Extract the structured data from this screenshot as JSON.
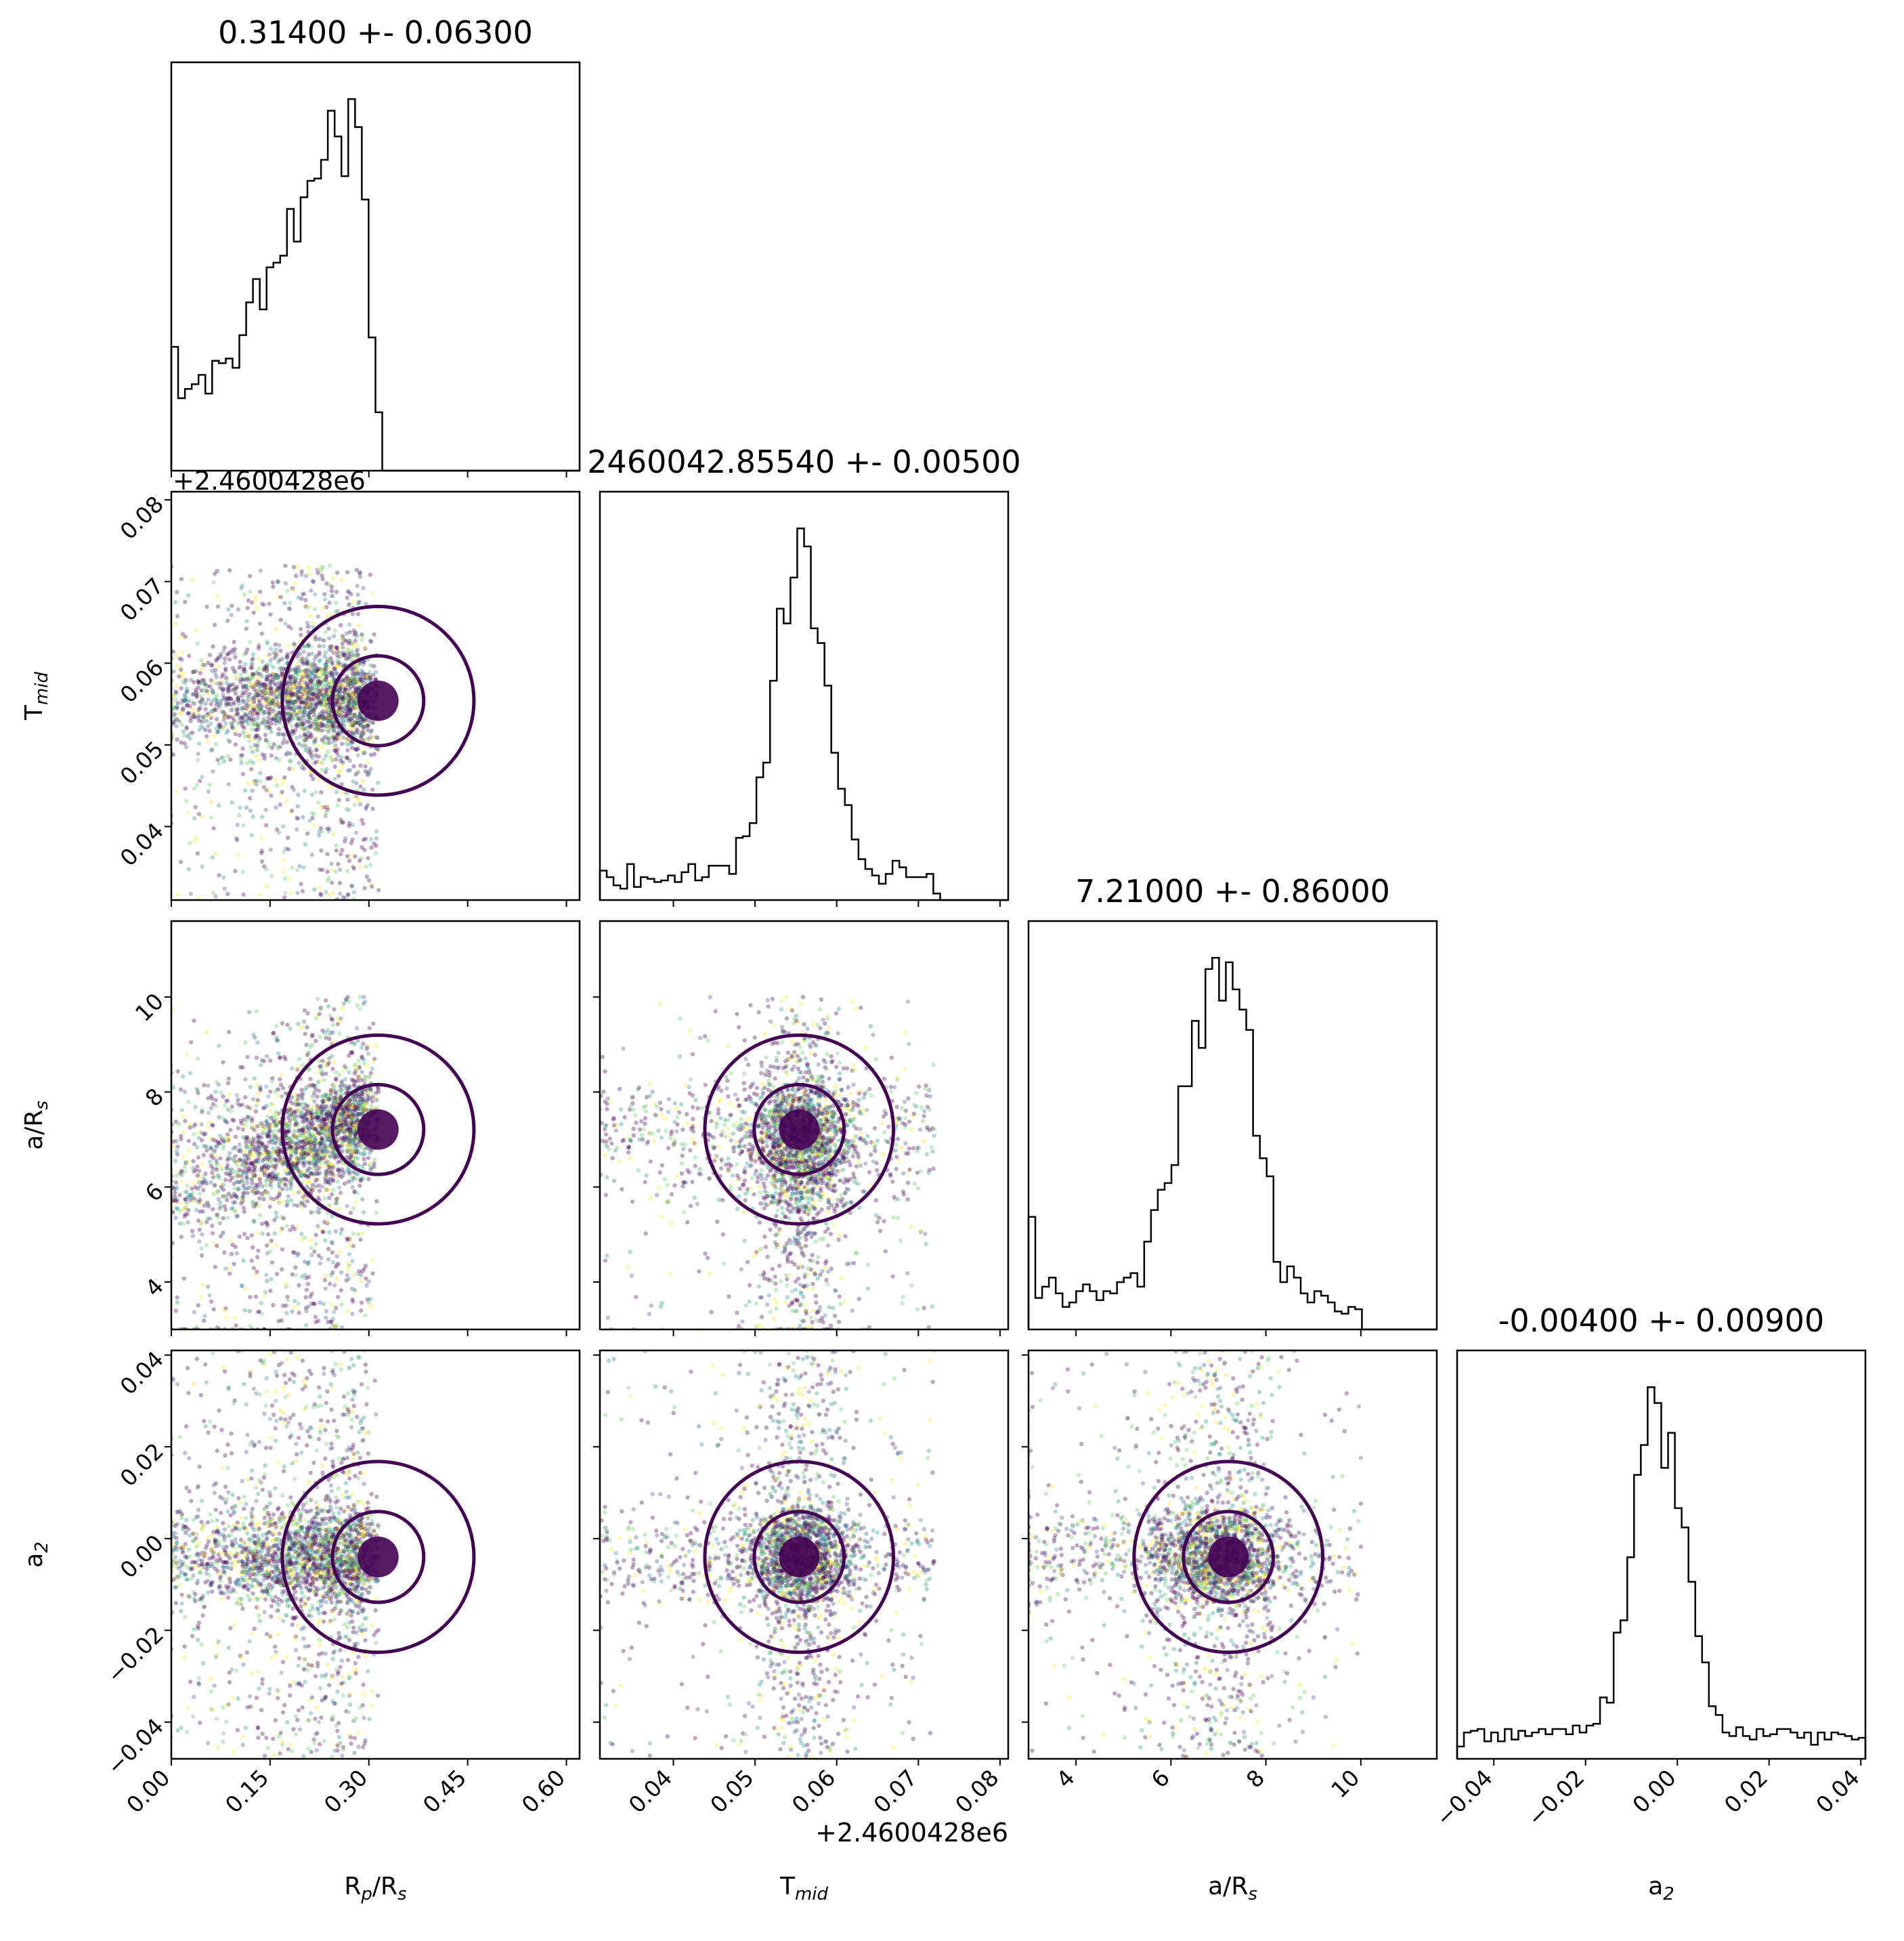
{
  "chart_data": {
    "type": "corner",
    "parameters": [
      {
        "key": "rp",
        "label": "Rp/Rs",
        "display_main": "R",
        "display_sub1": "p",
        "display_mid": "/R",
        "display_sub2": "s",
        "range": [
          0.0,
          0.62
        ],
        "ticks": [
          "0.00",
          "0.15",
          "0.30",
          "0.45",
          "0.60"
        ],
        "tick_values": [
          0.0,
          0.15,
          0.3,
          0.45,
          0.6
        ],
        "title": "0.31400 +- 0.06300",
        "best": 0.314,
        "sigma": 0.063,
        "sample_range": [
          0.0,
          0.315
        ]
      },
      {
        "key": "tmid",
        "label": "Tmid",
        "display_main": "T",
        "display_sub1": "mid",
        "display_mid": "",
        "display_sub2": "",
        "range": [
          0.031,
          0.081
        ],
        "ticks": [
          "0.04",
          "0.05",
          "0.06",
          "0.07",
          "0.08"
        ],
        "tick_values": [
          0.04,
          0.05,
          0.06,
          0.07,
          0.08
        ],
        "offset": "+2.4600428e6",
        "title": "2460042.85540 +- 0.00500",
        "best": 0.0554,
        "sigma": 0.005,
        "sample_range": [
          0.031,
          0.072
        ]
      },
      {
        "key": "ars",
        "label": "a/Rs",
        "display_main": "a/R",
        "display_sub1": "",
        "display_mid": "",
        "display_sub2": "s",
        "range": [
          3.0,
          11.6
        ],
        "ticks": [
          "4",
          "6",
          "8",
          "10"
        ],
        "tick_values": [
          4,
          6,
          8,
          10
        ],
        "title": "7.21000 +- 0.86000",
        "best": 7.21,
        "sigma": 0.86,
        "sample_range": [
          3.0,
          10.0
        ]
      },
      {
        "key": "a2",
        "label": "a2",
        "display_main": "a",
        "display_sub1": "2",
        "display_mid": "",
        "display_sub2": "",
        "range": [
          -0.048,
          0.041
        ],
        "ticks": [
          "−0.04",
          "−0.02",
          "0.00",
          "0.02",
          "0.04"
        ],
        "tick_values": [
          -0.04,
          -0.02,
          0.0,
          0.02,
          0.04
        ],
        "title": "-0.00400 +- 0.00900",
        "best": -0.004,
        "sigma": 0.009,
        "sample_range": [
          -0.048,
          0.041
        ]
      }
    ],
    "grid": false,
    "colors": {
      "histogram": "#000000",
      "contour": "#440154",
      "points": [
        "#440154",
        "#440154",
        "#440154",
        "#3b528b",
        "#21918c",
        "#5ec962",
        "#fde725"
      ]
    }
  }
}
